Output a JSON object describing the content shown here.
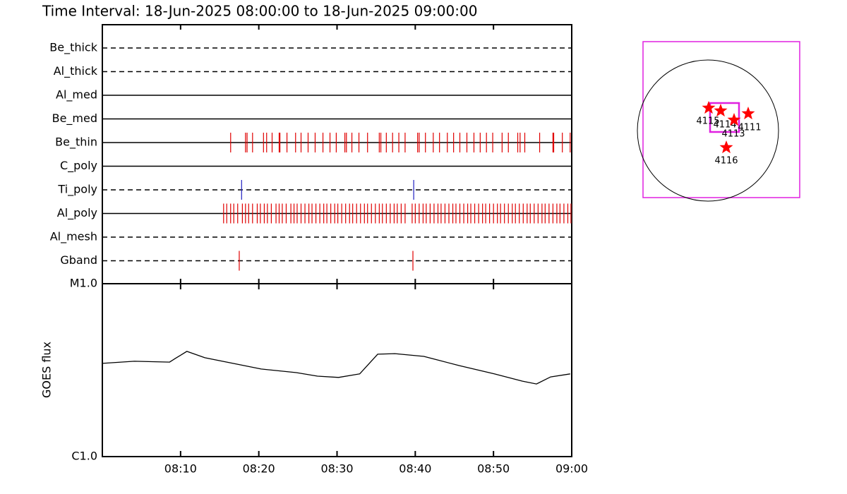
{
  "title": "Time Interval: 18-Jun-2025 08:00:00 to 18-Jun-2025 09:00:00",
  "chart_data": [
    {
      "type": "timeline",
      "categories": [
        "Be_thick",
        "Al_thick",
        "Al_med",
        "Be_med",
        "Be_thin",
        "C_poly",
        "Ti_poly",
        "Al_poly",
        "Al_mesh",
        "Gband"
      ],
      "line_styles": [
        "dashed",
        "dashed",
        "solid",
        "solid",
        "solid",
        "solid",
        "dashed",
        "solid",
        "dashed",
        "dashed"
      ],
      "colors": [
        "#e00000",
        "#e00000",
        "#e00000",
        "#e00000",
        "#e00000",
        "#e00000",
        "#2020c0",
        "#e00000",
        "#e00000",
        "#e00000"
      ],
      "x": [
        [],
        [],
        [],
        [],
        [
          16.4,
          18.3,
          18.5,
          19.2,
          20.6,
          21.0,
          21.7,
          22.6,
          22.7,
          23.6,
          24.7,
          25.4,
          26.3,
          27.2,
          28.2,
          29.1,
          29.9,
          31.0,
          31.2,
          31.9,
          32.8,
          33.9,
          35.4,
          35.6,
          36.3,
          37.1,
          37.9,
          38.7,
          40.3,
          40.5,
          41.3,
          42.3,
          43.1,
          44.1,
          44.9,
          45.7,
          46.6,
          47.5,
          48.3,
          49.1,
          49.9,
          51.1,
          51.9,
          53.1,
          53.4,
          54.0,
          55.9,
          57.6,
          57.7,
          58.8,
          59.8
        ],
        [],
        [
          17.8,
          39.8
        ],
        [
          15.5,
          15.9,
          16.4,
          16.8,
          17.3,
          17.9,
          18.3,
          18.7,
          19.2,
          19.8,
          20.2,
          20.7,
          21.1,
          21.6,
          22.2,
          22.6,
          23.0,
          23.5,
          24.1,
          24.5,
          24.9,
          25.4,
          25.9,
          26.4,
          26.8,
          27.3,
          27.8,
          28.3,
          28.7,
          29.2,
          29.7,
          30.1,
          30.6,
          31.1,
          31.6,
          32.0,
          32.5,
          33.0,
          33.5,
          33.9,
          34.4,
          34.9,
          35.4,
          35.8,
          36.3,
          36.8,
          37.3,
          37.7,
          38.2,
          38.7,
          39.6,
          40.0,
          40.5,
          41.0,
          41.4,
          41.9,
          42.4,
          42.9,
          43.3,
          43.8,
          44.3,
          44.8,
          45.2,
          45.7,
          46.2,
          46.7,
          47.1,
          47.6,
          48.1,
          48.6,
          49.0,
          49.5,
          50.0,
          50.5,
          50.9,
          51.4,
          51.9,
          52.4,
          52.8,
          53.3,
          53.8,
          54.3,
          54.7,
          55.2,
          55.7,
          56.2,
          56.6,
          57.1,
          57.6,
          58.1,
          58.5,
          59.0,
          59.5,
          59.9
        ],
        [],
        [
          17.5,
          39.7
        ]
      ],
      "xlim": [
        0,
        60
      ],
      "xticks": [
        {
          "value": 10,
          "label": "08:10"
        },
        {
          "value": 20,
          "label": "08:20"
        },
        {
          "value": 30,
          "label": "08:30"
        },
        {
          "value": 40,
          "label": "08:40"
        },
        {
          "value": 50,
          "label": "08:50"
        },
        {
          "value": 60,
          "label": "09:00"
        }
      ]
    },
    {
      "type": "line",
      "y_label": "GOES flux",
      "log_y": true,
      "color": "#000000",
      "x": [
        0,
        4.1,
        8.6,
        9.3,
        10.8,
        13.1,
        16.7,
        20.3,
        24.8,
        27.5,
        30.2,
        32.9,
        35.2,
        37.4,
        41.1,
        45.6,
        50.1,
        53.7,
        55.5,
        57.3,
        59.8
      ],
      "values": [
        3.46e-06,
        3.56e-06,
        3.52e-06,
        3.69e-06,
        4.06e-06,
        3.73e-06,
        3.46e-06,
        3.21e-06,
        3.06e-06,
        2.92e-06,
        2.87e-06,
        3.01e-06,
        3.91e-06,
        3.94e-06,
        3.8e-06,
        3.36e-06,
        3.01e-06,
        2.73e-06,
        2.63e-06,
        2.89e-06,
        3.01e-06
      ],
      "xlim": [
        0,
        60
      ],
      "ylim": [
        1e-06,
        1e-05
      ],
      "yticks": [
        {
          "value": 1e-06,
          "label": "C1.0"
        },
        {
          "value": 1e-05,
          "label": "M1.0"
        }
      ],
      "xticks": [
        {
          "value": 10,
          "label": "08:10"
        },
        {
          "value": 20,
          "label": "08:20"
        },
        {
          "value": 30,
          "label": "08:30"
        },
        {
          "value": 40,
          "label": "08:40"
        },
        {
          "value": 50,
          "label": "08:50"
        },
        {
          "value": 60,
          "label": "09:00"
        }
      ]
    }
  ],
  "map": {
    "regions": [
      "4115",
      "4114",
      "4113",
      "4111",
      "4116"
    ]
  }
}
